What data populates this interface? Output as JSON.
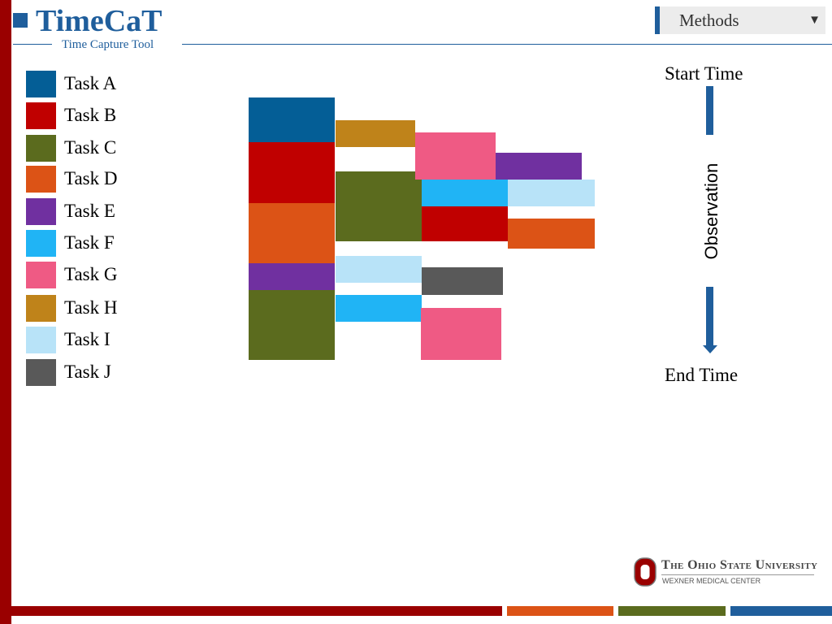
{
  "header": {
    "title": "TimeCaT",
    "subtitle": "Time Capture Tool",
    "section": "Methods",
    "section_arrow": "▼"
  },
  "colors": {
    "brand_blue": "#1f5e9c",
    "brand_red": "#9a0000"
  },
  "legend": [
    {
      "label": "Task A",
      "color": "#045e96"
    },
    {
      "label": "Task B",
      "color": "#c00000"
    },
    {
      "label": "Task C",
      "color": "#5b6b1e"
    },
    {
      "label": "Task D",
      "color": "#dc5316"
    },
    {
      "label": "Task E",
      "color": "#7030a0"
    },
    {
      "label": "Task F",
      "color": "#20b4f5"
    },
    {
      "label": "Task G",
      "color": "#ef5a84"
    },
    {
      "label": "Task H",
      "color": "#bf831a"
    },
    {
      "label": "Task I",
      "color": "#b8e3f8"
    },
    {
      "label": "Task J",
      "color": "#595959"
    }
  ],
  "timeline": {
    "start_label": "Start Time",
    "axis_label": "Observation",
    "end_label": "End Time"
  },
  "footer": {
    "university": "The Ohio State University",
    "center": "WEXNER MEDICAL CENTER",
    "bar_colors": [
      "#dc5316",
      "#5b6b1e",
      "#1f5e9c"
    ]
  }
}
